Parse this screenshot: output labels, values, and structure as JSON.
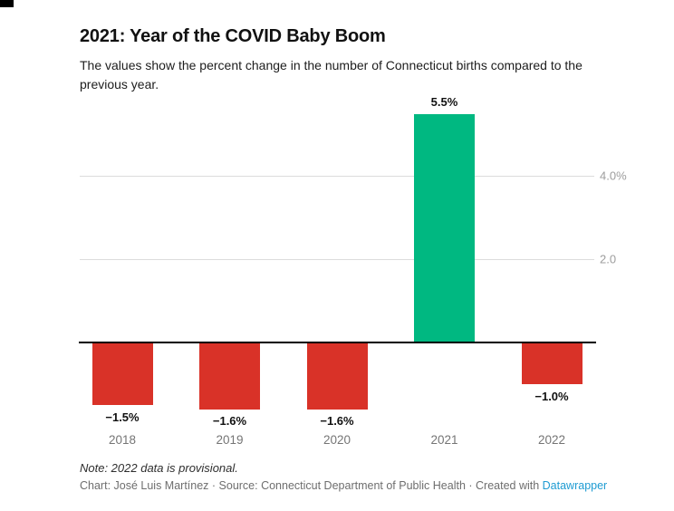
{
  "page": {
    "title": "2021: Year of the COVID Baby Boom",
    "description": "The values show the percent change in the number of Connecticut births compared to the previous year.",
    "note": "Note: 2022 data is provisional.",
    "footer_prefix": "Chart: José Luis Martínez · Source: Connecticut Department of Public Health · Created with ",
    "footer_link_label": "Datawrapper"
  },
  "colors": {
    "positive_bar": "#00b881",
    "negative_bar": "#d93228",
    "link": "#1e9bd2",
    "gridline": "#dcdcdc",
    "tick_label": "#9d9d9d",
    "axis_line": "#000000"
  },
  "chart_data": {
    "type": "bar",
    "title": "2021: Year of the COVID Baby Boom",
    "subtitle": "The values show the percent change in the number of Connecticut births compared to the previous year.",
    "categories": [
      "2018",
      "2019",
      "2020",
      "2021",
      "2022"
    ],
    "values": [
      -1.5,
      -1.6,
      -1.6,
      5.5,
      -1.0
    ],
    "bar_labels": [
      "−1.5%",
      "−1.6%",
      "−1.6%",
      "5.5%",
      "−1.0%"
    ],
    "xlabel": "",
    "ylabel": "",
    "unit": "percent change vs previous year",
    "y_ticks": [
      {
        "value": 2.0,
        "label": "2.0"
      },
      {
        "value": 4.0,
        "label": "4.0%"
      }
    ],
    "ylim": [
      -2.1,
      5.9
    ],
    "grid": "horizontal",
    "legend": "none",
    "note": "Note: 2022 data is provisional."
  }
}
